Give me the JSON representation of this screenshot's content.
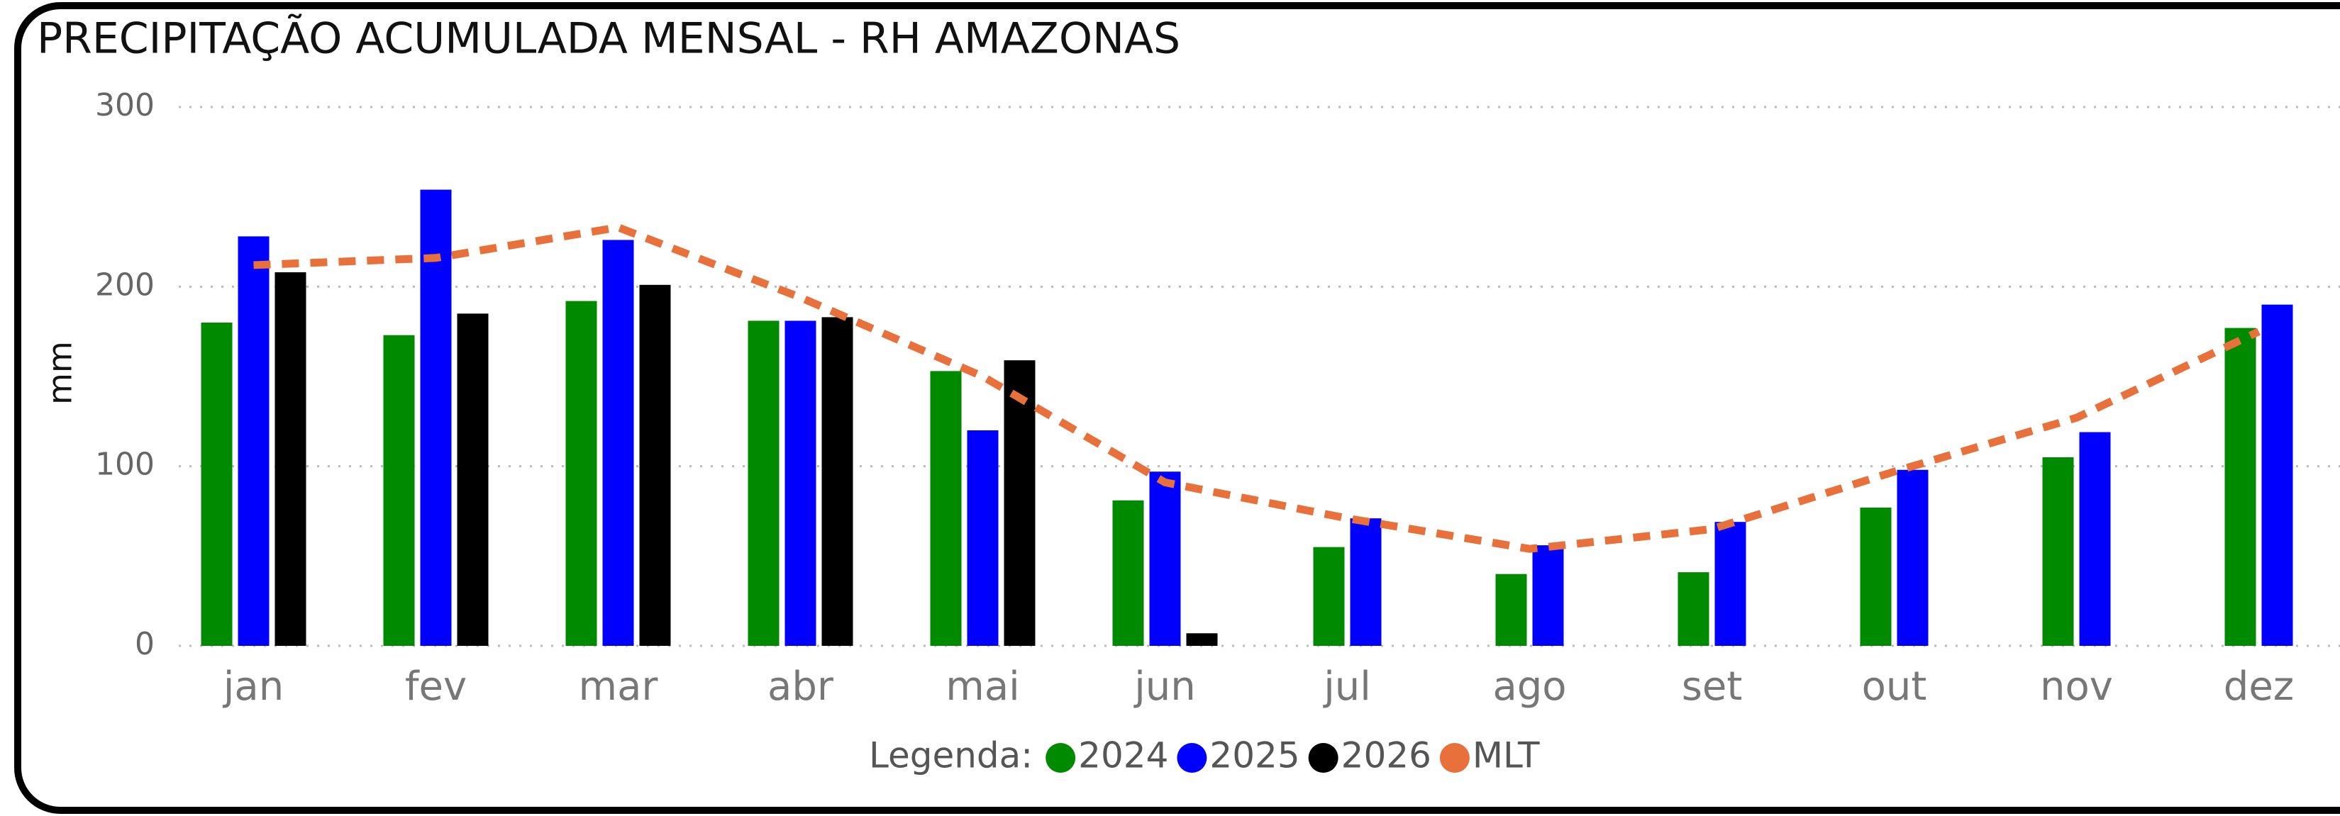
{
  "chart_data": {
    "type": "bar",
    "title": "PRECIPITAÇÃO ACUMULADA MENSAL - RH AMAZONAS",
    "y_label": "mm",
    "legend_title": "Legenda:",
    "categories": [
      "jan",
      "fev",
      "mar",
      "abr",
      "mai",
      "jun",
      "jul",
      "ago",
      "set",
      "out",
      "nov",
      "dez"
    ],
    "series": [
      {
        "name": "2024",
        "color": "#008a00",
        "values": [
          180,
          173,
          192,
          181,
          153,
          81,
          55,
          40,
          41,
          77,
          105,
          177
        ]
      },
      {
        "name": "2025",
        "color": "#0000ff",
        "values": [
          228,
          254,
          226,
          181,
          120,
          97,
          71,
          56,
          69,
          98,
          119,
          190
        ]
      },
      {
        "name": "2026",
        "color": "#000000",
        "values": [
          208,
          185,
          201,
          183,
          159,
          7,
          null,
          null,
          null,
          null,
          null,
          null
        ]
      },
      {
        "name": "MLT",
        "color": "#e8703a",
        "type": "line",
        "dashed": true,
        "values": [
          212,
          216,
          233,
          194,
          150,
          91,
          71,
          54,
          65,
          97,
          127,
          175
        ]
      }
    ],
    "ylim": [
      0,
      300
    ],
    "yticks": [
      0,
      100,
      200,
      300
    ],
    "grid": true
  }
}
